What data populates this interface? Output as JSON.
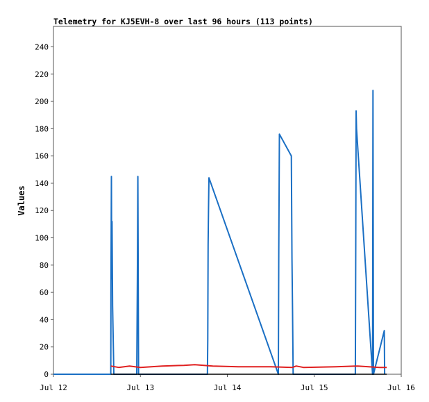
{
  "chart_data": {
    "type": "line",
    "title": "Telemetry for KJ5EVH-8 over last 96 hours (113 points)",
    "xlabel": "",
    "ylabel": "Values",
    "x_axis": {
      "type": "time",
      "start": "2025-07-12T00:00",
      "end": "2025-07-16T00:00"
    },
    "xticks": [
      "Jul 12",
      "Jul 13",
      "Jul 14",
      "Jul 15",
      "Jul 16"
    ],
    "ylim": [
      0,
      255
    ],
    "yticks": [
      0,
      20,
      40,
      60,
      80,
      100,
      120,
      140,
      160,
      180,
      200,
      220,
      240
    ],
    "grid": false,
    "legend": "none",
    "series": [
      {
        "color": "#1a6fc4",
        "points": [
          [
            "2025-07-12T00:00",
            0
          ],
          [
            "2025-07-12T00:00",
            0
          ],
          [
            "2025-07-12T15:50",
            0
          ],
          [
            "2025-07-12T15:53",
            72
          ],
          [
            "2025-07-12T16:00",
            145
          ],
          [
            "2025-07-12T16:05",
            70
          ],
          [
            "2025-07-12T16:10",
            112
          ],
          [
            "2025-07-12T16:20",
            50
          ],
          [
            "2025-07-12T16:40",
            0
          ],
          [
            "2025-07-12T23:00",
            0
          ],
          [
            "2025-07-12T23:10",
            70
          ],
          [
            "2025-07-12T23:18",
            145
          ],
          [
            "2025-07-12T23:30",
            0
          ],
          [
            "2025-07-13T18:30",
            0
          ],
          [
            "2025-07-13T18:36",
            25
          ],
          [
            "2025-07-13T18:42",
            95
          ],
          [
            "2025-07-13T18:48",
            122
          ],
          [
            "2025-07-13T18:55",
            144
          ],
          [
            "2025-07-14T14:05",
            0
          ],
          [
            "2025-07-14T14:12",
            90
          ],
          [
            "2025-07-14T14:22",
            176
          ],
          [
            "2025-07-14T17:40",
            160
          ],
          [
            "2025-07-14T17:50",
            85
          ],
          [
            "2025-07-14T18:00",
            48
          ],
          [
            "2025-07-14T18:10",
            0
          ],
          [
            "2025-07-15T11:20",
            0
          ],
          [
            "2025-07-15T11:27",
            97
          ],
          [
            "2025-07-15T11:33",
            193
          ],
          [
            "2025-07-15T11:40",
            180
          ],
          [
            "2025-07-15T16:05",
            0
          ],
          [
            "2025-07-15T16:12",
            208
          ],
          [
            "2025-07-15T16:20",
            0
          ],
          [
            "2025-07-15T19:20",
            32
          ],
          [
            "2025-07-15T19:25",
            0
          ]
        ]
      },
      {
        "color": "#e02020",
        "points": [
          [
            "2025-07-12T15:50",
            6
          ],
          [
            "2025-07-12T18:00",
            5
          ],
          [
            "2025-07-12T21:00",
            6
          ],
          [
            "2025-07-13T00:00",
            5
          ],
          [
            "2025-07-13T06:00",
            6
          ],
          [
            "2025-07-13T12:00",
            6.5
          ],
          [
            "2025-07-13T15:00",
            7
          ],
          [
            "2025-07-13T20:00",
            6
          ],
          [
            "2025-07-14T03:00",
            5.5
          ],
          [
            "2025-07-14T12:00",
            5.5
          ],
          [
            "2025-07-14T18:00",
            5
          ],
          [
            "2025-07-14T19:00",
            6
          ],
          [
            "2025-07-14T21:00",
            5
          ],
          [
            "2025-07-15T06:00",
            5.5
          ],
          [
            "2025-07-15T12:00",
            6
          ],
          [
            "2025-07-15T18:00",
            5
          ],
          [
            "2025-07-15T20:00",
            5
          ]
        ]
      },
      {
        "color": "#000000",
        "points": [
          [
            "2025-07-12T15:50",
            0
          ],
          [
            "2025-07-15T20:00",
            0
          ]
        ]
      }
    ]
  }
}
